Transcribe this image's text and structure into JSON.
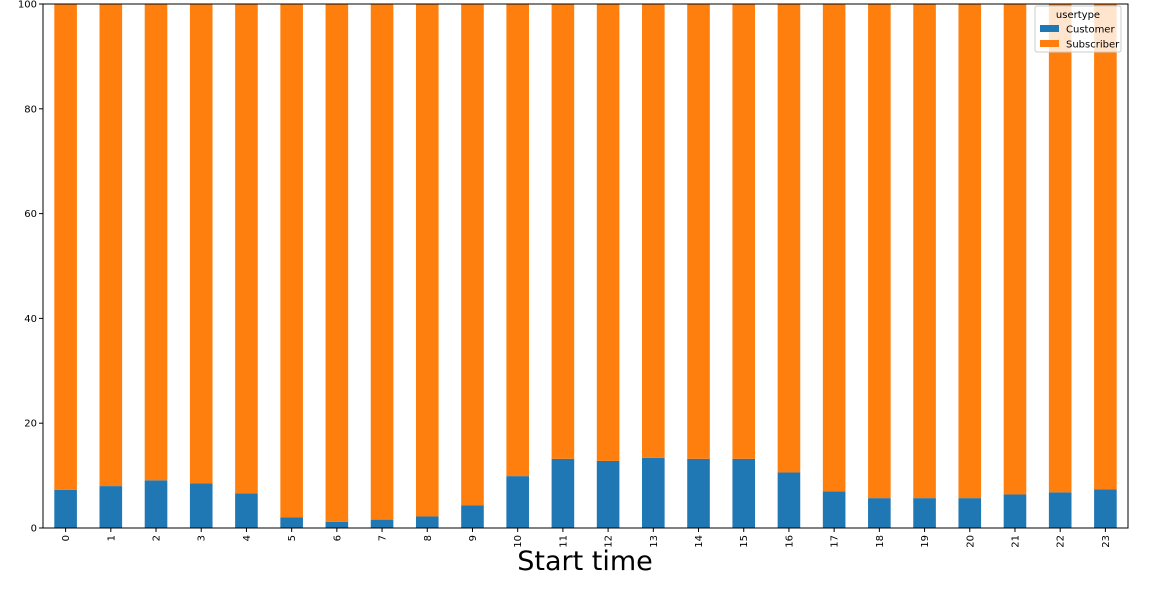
{
  "chart_data": {
    "type": "bar",
    "stacked": true,
    "xlabel": "Start time",
    "ylabel": "",
    "ylim": [
      0,
      100
    ],
    "yticks": [
      0,
      20,
      40,
      60,
      80,
      100
    ],
    "categories": [
      "0",
      "1",
      "2",
      "3",
      "4",
      "5",
      "6",
      "7",
      "8",
      "9",
      "10",
      "11",
      "12",
      "13",
      "14",
      "15",
      "16",
      "17",
      "18",
      "19",
      "20",
      "21",
      "22",
      "23"
    ],
    "legend": {
      "title": "usertype",
      "placement": "top-right"
    },
    "series": [
      {
        "name": "Customer",
        "color": "#1f77b4",
        "values": [
          7.3,
          8.0,
          9.1,
          8.5,
          6.6,
          2.0,
          1.2,
          1.6,
          2.2,
          4.3,
          9.9,
          13.2,
          12.8,
          13.4,
          13.2,
          13.2,
          10.6,
          7.0,
          5.7,
          5.7,
          5.7,
          6.4,
          6.8,
          7.4
        ]
      },
      {
        "name": "Subscriber",
        "color": "#ff7f0e",
        "values": [
          92.7,
          92.0,
          90.9,
          91.5,
          93.4,
          98.0,
          98.8,
          98.4,
          97.8,
          95.7,
          90.1,
          86.8,
          87.2,
          86.6,
          86.8,
          86.8,
          89.4,
          93.0,
          94.3,
          94.3,
          94.3,
          93.6,
          93.2,
          92.6
        ]
      }
    ]
  }
}
